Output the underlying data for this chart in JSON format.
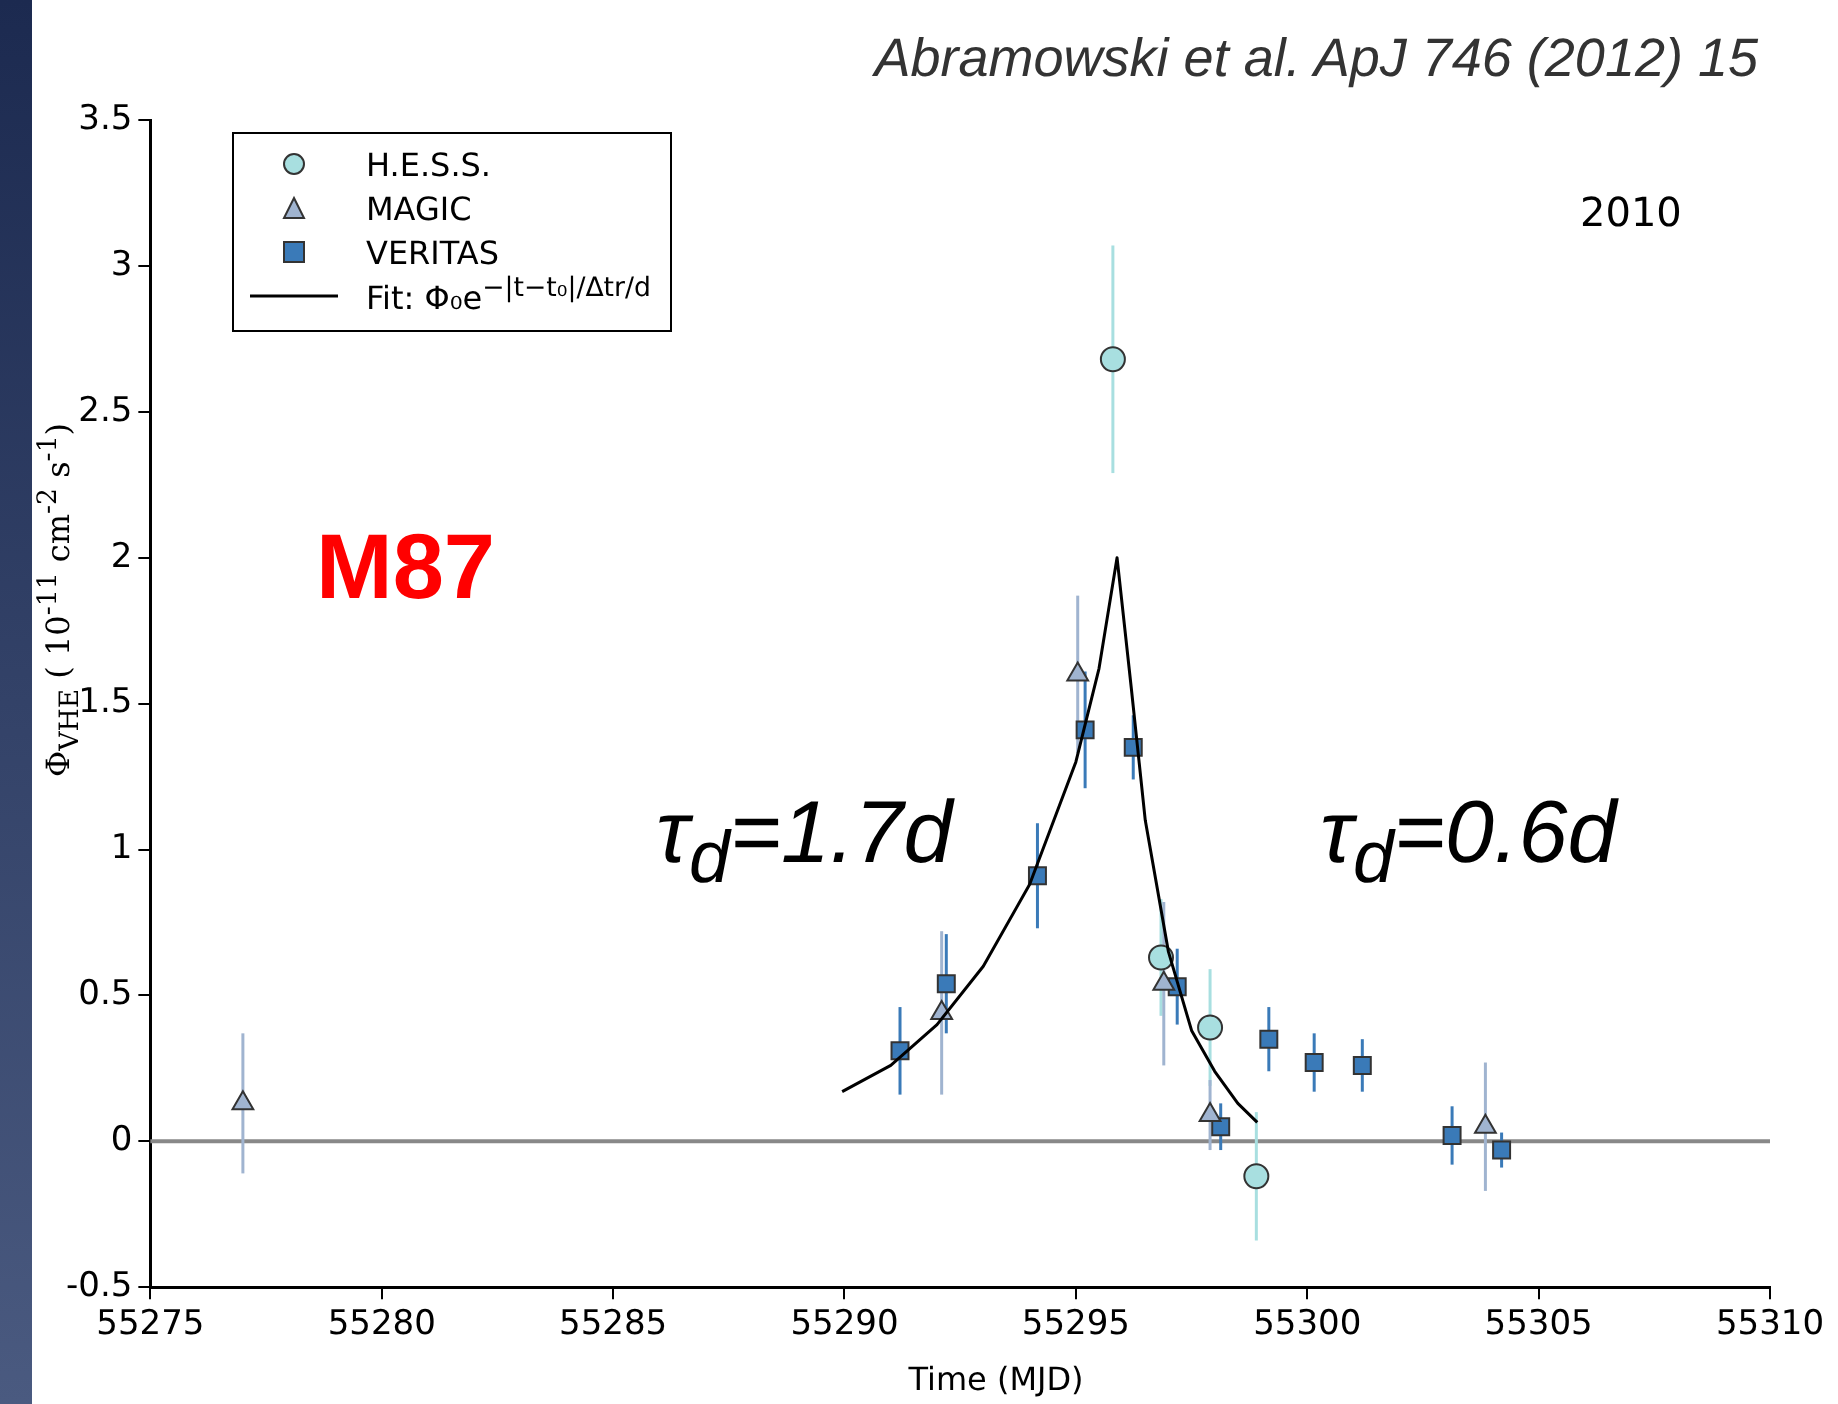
{
  "chart_data": {
    "type": "scatter",
    "title": "Abramowski et al. ApJ 746 (2012) 15",
    "xlabel": "Time (MJD)",
    "ylabel": "Φ$_{VHE}$ ( 10$^{-11}$ cm$^{-2}$ s$^{-1}$)",
    "xlim": [
      55275,
      55310
    ],
    "xticks": [
      55275,
      55280,
      55285,
      55290,
      55295,
      55300,
      55305,
      55310
    ],
    "ylim": [
      -0.5,
      3.5
    ],
    "yticks": [
      -0.5,
      0,
      0.5,
      1,
      1.5,
      2,
      2.5,
      3,
      3.5
    ],
    "grid": false,
    "legend": "top left",
    "ref_lines": [
      {
        "axis": "y",
        "value": 0,
        "color": "#888888"
      }
    ],
    "annotations": [
      "2010",
      "M87",
      "τ$_{d}$=1.7d",
      "τ$_{d}$=0.6d"
    ],
    "series": [
      {
        "name": "H.E.S.S.",
        "marker": "circle",
        "color": "#a8dfe0",
        "x": [
          55295.8,
          55296.84,
          55297.9,
          55298.9
        ],
        "values": [
          2.68,
          0.63,
          0.39,
          -0.12
        ],
        "errors": [
          0.39,
          0.2,
          0.2,
          0.22
        ]
      },
      {
        "name": "MAGIC",
        "marker": "triangle",
        "color": "#a0b4d0",
        "x": [
          55277,
          55292.1,
          55295.04,
          55296.9,
          55297.9,
          55303.85
        ],
        "values": [
          0.13,
          0.44,
          1.6,
          0.54,
          0.09,
          0.05
        ],
        "errors": [
          0.24,
          0.28,
          0.27,
          0.28,
          0.12,
          0.22
        ]
      },
      {
        "name": "VERITAS",
        "marker": "square",
        "color": "#3a7ab8",
        "x": [
          55291.2,
          55292.2,
          55294.17,
          55295.2,
          55296.24,
          55297.19,
          55298.13,
          55299.17,
          55300.15,
          55301.19,
          55303.13,
          55304.2
        ],
        "values": [
          0.31,
          0.54,
          0.91,
          1.41,
          1.35,
          0.53,
          0.05,
          0.35,
          0.27,
          0.26,
          0.02,
          -0.03
        ],
        "errors": [
          0.15,
          0.17,
          0.18,
          0.2,
          0.11,
          0.13,
          0.08,
          0.11,
          0.1,
          0.09,
          0.1,
          0.06
        ]
      },
      {
        "name": "Fit: Φ₀e$^{−|t−t₀|/Δtr/d}$",
        "type": "line",
        "marker": "none",
        "line_style": "solid",
        "color": "#000000",
        "x": [
          55289.95,
          55291,
          55292,
          55293,
          55294,
          55295,
          55295.5,
          55295.89,
          55296.2,
          55296.5,
          55297,
          55297.5,
          55298,
          55298.5,
          55298.92
        ],
        "values": [
          0.17,
          0.26,
          0.4,
          0.6,
          0.88,
          1.3,
          1.62,
          2.0,
          1.55,
          1.1,
          0.65,
          0.38,
          0.24,
          0.13,
          0.065
        ]
      }
    ]
  }
}
